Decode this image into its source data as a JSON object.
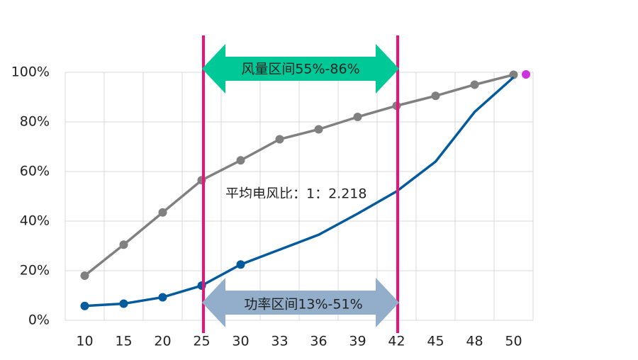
{
  "chart_data": {
    "type": "line",
    "categories": [
      "10",
      "15",
      "20",
      "25",
      "30",
      "33",
      "36",
      "39",
      "42",
      "45",
      "48",
      "50"
    ],
    "series": [
      {
        "color": "#808080",
        "values": [
          18,
          30.5,
          43.5,
          56.5,
          64.5,
          73,
          77,
          82,
          86.5,
          90.5,
          95,
          99
        ],
        "markers": [
          true,
          true,
          true,
          true,
          true,
          true,
          true,
          true,
          true,
          true,
          true,
          true
        ]
      },
      {
        "color": "#035a9c",
        "values": [
          5.8,
          6.7,
          9.3,
          14,
          22.5,
          28.5,
          34.5,
          43,
          52,
          64,
          84,
          98
        ],
        "markers": [
          true,
          true,
          true,
          true,
          true,
          false,
          false,
          false,
          false,
          false,
          false,
          false
        ]
      }
    ],
    "ylim": [
      0,
      100
    ],
    "yticks": [
      {
        "value": 0,
        "label": "0%"
      },
      {
        "value": 20,
        "label": "20%"
      },
      {
        "value": 40,
        "label": "40%"
      },
      {
        "value": 60,
        "label": "60%"
      },
      {
        "value": 80,
        "label": "80%"
      },
      {
        "value": 100,
        "label": "100%"
      }
    ],
    "grid": true,
    "annotations": [
      "风量区间55%-86%",
      "功率区间13%-51%",
      "平均电风比：1：2.218"
    ]
  }
}
